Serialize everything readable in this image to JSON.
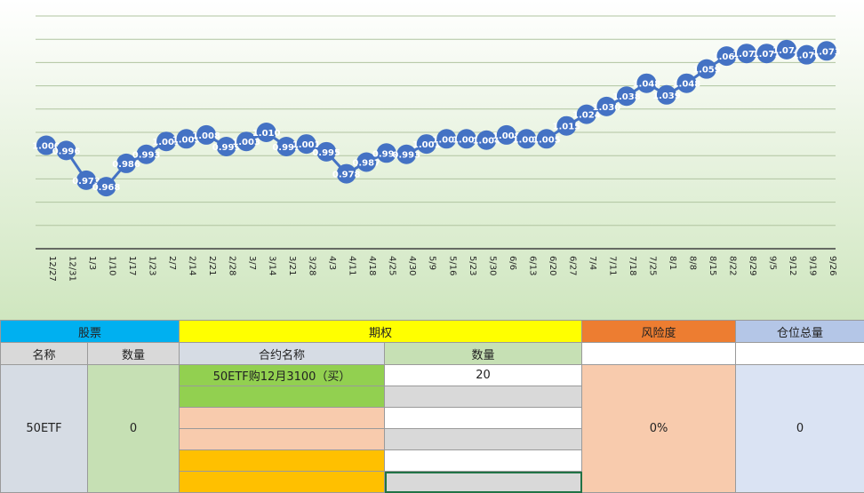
{
  "chart_data": {
    "type": "line",
    "categories": [
      "12/27",
      "12/31",
      "1/3",
      "1/10",
      "1/17",
      "1/23",
      "2/7",
      "2/14",
      "2/21",
      "2/28",
      "3/7",
      "3/14",
      "3/21",
      "3/28",
      "4/3",
      "4/11",
      "4/18",
      "4/25",
      "4/30",
      "5/9",
      "5/16",
      "5/23",
      "5/30",
      "6/6",
      "6/13",
      "6/20",
      "6/27",
      "7/4",
      "7/11",
      "7/18",
      "7/25",
      "8/1",
      "8/8",
      "8/15",
      "8/22",
      "8/29",
      "9/5",
      "9/12",
      "9/19",
      "9/26"
    ],
    "values": [
      1.0,
      0.996,
      0.973,
      0.968,
      0.986,
      0.993,
      1.003,
      1.005,
      1.008,
      0.999,
      1.003,
      1.01,
      0.999,
      1.001,
      0.995,
      0.978,
      0.987,
      0.994,
      0.993,
      1.001,
      1.005,
      1.005,
      1.004,
      1.008,
      1.005,
      1.005,
      1.015,
      1.024,
      1.03,
      1.038,
      1.048,
      1.039,
      1.048,
      1.059,
      1.069,
      1.071,
      1.071,
      1.074,
      1.07,
      1.073
    ],
    "labels": [
      "1.000",
      "0.996",
      "0.973",
      "0.968",
      "0.986",
      "0.993",
      "1.003",
      "1.005",
      "1.008",
      "0.999",
      "1.003",
      "1.010",
      "0.999",
      "1.001",
      "0.995",
      "0.978",
      "0.987",
      "0.994",
      "0.993",
      "1.001",
      "1.005",
      "1.005",
      "1.004",
      "1.008",
      "1.005",
      "1.005",
      "1.015",
      "1.024",
      "1.030",
      "1.038",
      "1.048",
      "1.039",
      "1.048",
      "1.059",
      "1.069",
      "1.071",
      "1.071",
      "1.074",
      "1.070",
      "1.073"
    ],
    "ylim": [
      0.92,
      1.1
    ],
    "grid": true,
    "legend": "none",
    "colors": {
      "line": "#4472c4",
      "marker": "#4472c4",
      "label": "#ffffff",
      "grid": "#b0c4a0",
      "axis": "#404040"
    }
  },
  "sheet": {
    "groups": {
      "stock": "股票",
      "option": "期权",
      "risk": "风险度",
      "position": "仓位总量"
    },
    "headers": {
      "name": "名称",
      "qty": "数量",
      "contract": "合约名称",
      "option_qty": "数量"
    },
    "stock": {
      "name": "50ETF",
      "qty": "0"
    },
    "options": [
      {
        "contract": "50ETF购12月3100（买）",
        "qty": "20"
      },
      {
        "contract": "",
        "qty": ""
      },
      {
        "contract": "",
        "qty": ""
      },
      {
        "contract": "",
        "qty": ""
      },
      {
        "contract": "",
        "qty": ""
      },
      {
        "contract": "",
        "qty": ""
      }
    ],
    "risk": "0%",
    "position": "0"
  }
}
